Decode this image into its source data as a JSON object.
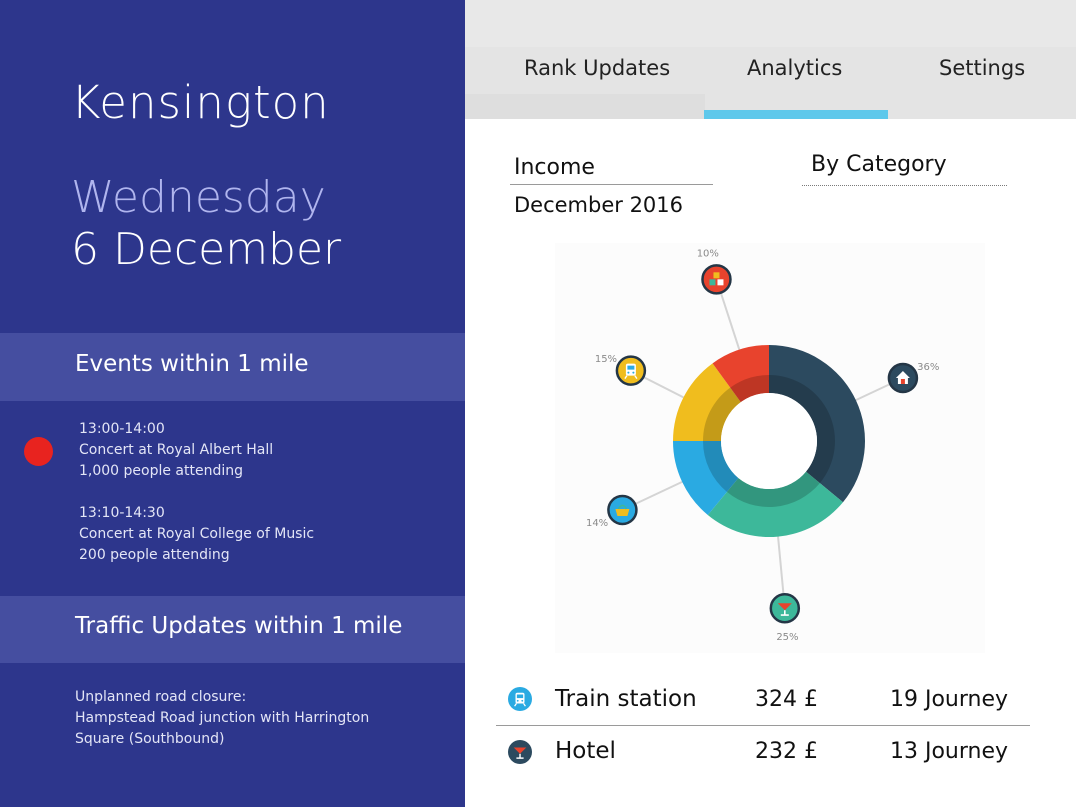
{
  "sidebar": {
    "location": "Kensington",
    "weekday": "Wednesday",
    "date": "6 December",
    "events_title": "Events within 1 mile",
    "events": [
      {
        "time": "13:00-14:00",
        "name": "Concert at Royal Albert Hall",
        "attendance": "1,000 people attending"
      },
      {
        "time": "13:10-14:30",
        "name": "Concert at Royal College of Music",
        "attendance": "200 people attending"
      }
    ],
    "traffic_title": "Traffic Updates within 1 mile",
    "traffic_lines": [
      "Unplanned road closure:",
      "Hampstead Road junction with Harrington",
      "Square (Southbound)"
    ]
  },
  "tabs": [
    {
      "label": "Rank Updates",
      "active": false
    },
    {
      "label": "Analytics",
      "active": true
    },
    {
      "label": "Settings",
      "active": false
    }
  ],
  "analytics": {
    "income_label": "Income",
    "period": "December 2016",
    "category_label": "By Category"
  },
  "chart_data": {
    "type": "pie",
    "style": "donut",
    "slices": [
      {
        "label": "36%",
        "value": 36,
        "color": "#2c4a5f",
        "icon": "home-icon"
      },
      {
        "label": "25%",
        "value": 25,
        "color": "#3db89a",
        "icon": "cocktail-icon"
      },
      {
        "label": "14%",
        "value": 14,
        "color": "#2aaae2",
        "icon": "basket-icon"
      },
      {
        "label": "15%",
        "value": 15,
        "color": "#f0bd1e",
        "icon": "train-icon"
      },
      {
        "label": "10%",
        "value": 10,
        "color": "#e8432d",
        "icon": "cubes-icon"
      }
    ]
  },
  "rows": [
    {
      "name": "Train station",
      "amount": "324 £",
      "journeys": "19 Journey",
      "icon": "train-icon"
    },
    {
      "name": "Hotel",
      "amount": "232 £",
      "journeys": "13 Journey",
      "icon": "cocktail-icon"
    }
  ]
}
